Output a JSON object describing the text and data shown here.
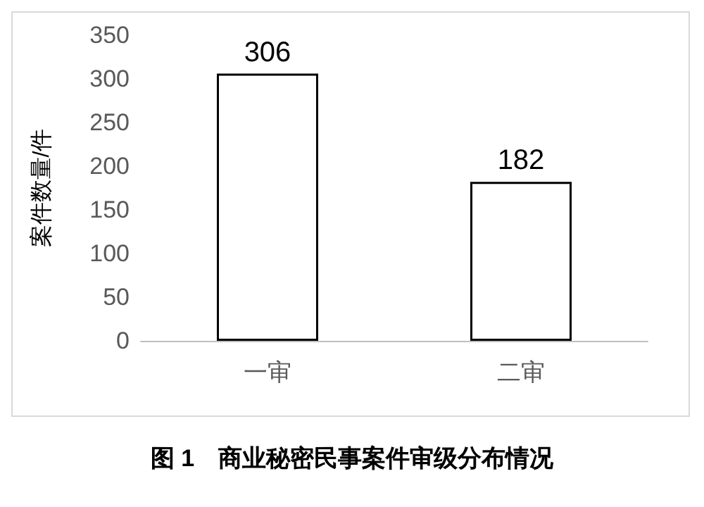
{
  "chart_data": {
    "type": "bar",
    "title": "图 1　商业秘密民事案件审级分布情况",
    "ylabel": "案件数量/件",
    "categories": [
      "一审",
      "二审"
    ],
    "values": [
      306,
      182
    ],
    "color": "#ffffff",
    "ylim": [
      0,
      350
    ],
    "yticks": [
      0,
      50,
      100,
      150,
      200,
      250,
      300,
      350
    ],
    "grid": false,
    "data_labels": true
  }
}
